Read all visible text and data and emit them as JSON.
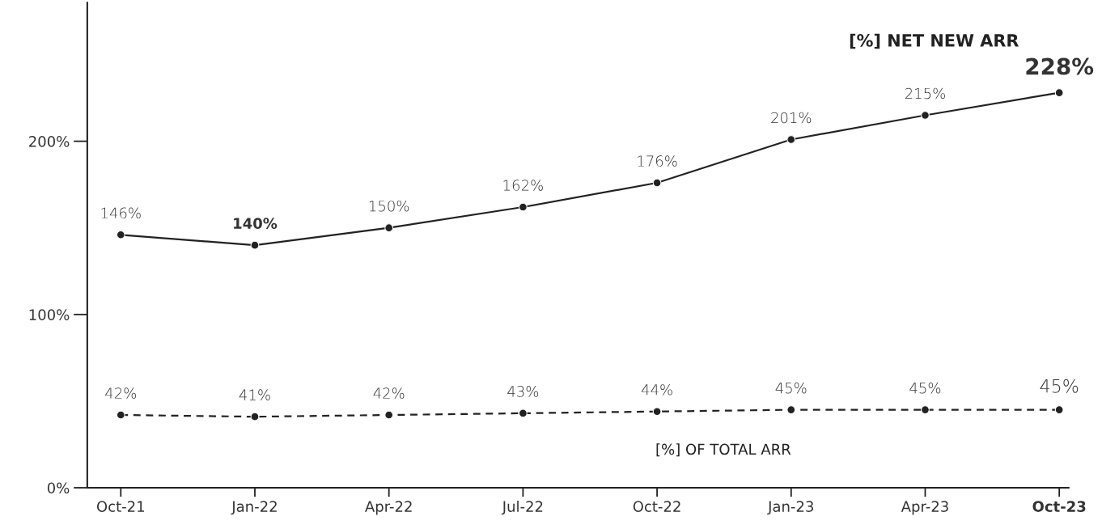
{
  "chart_data": {
    "type": "line",
    "categories": [
      "Oct-21",
      "Jan-22",
      "Apr-22",
      "Jul-22",
      "Oct-22",
      "Jan-23",
      "Apr-23",
      "Oct-23"
    ],
    "series": [
      {
        "name": "[%] NET NEW ARR",
        "color": "#222222",
        "line_style": "solid",
        "values": [
          146,
          140,
          150,
          162,
          176,
          201,
          215,
          228
        ],
        "value_labels": [
          "146%",
          "140%",
          "150%",
          "162%",
          "176%",
          "201%",
          "215%",
          "228%"
        ]
      },
      {
        "name": "[%] OF TOTAL ARR",
        "color": "#222222",
        "line_style": "dashed",
        "values": [
          42,
          41,
          42,
          43,
          44,
          45,
          45,
          45
        ],
        "value_labels": [
          "42%",
          "41%",
          "42%",
          "43%",
          "44%",
          "45%",
          "45%",
          "45%"
        ]
      }
    ],
    "ylim": [
      0,
      280
    ],
    "yticks": [
      {
        "value": 0,
        "label": "0%"
      },
      {
        "value": 100,
        "label": "100%"
      },
      {
        "value": 200,
        "label": "200%"
      }
    ],
    "data_labels": true,
    "marker": "circle",
    "grid": false,
    "legend": false
  }
}
